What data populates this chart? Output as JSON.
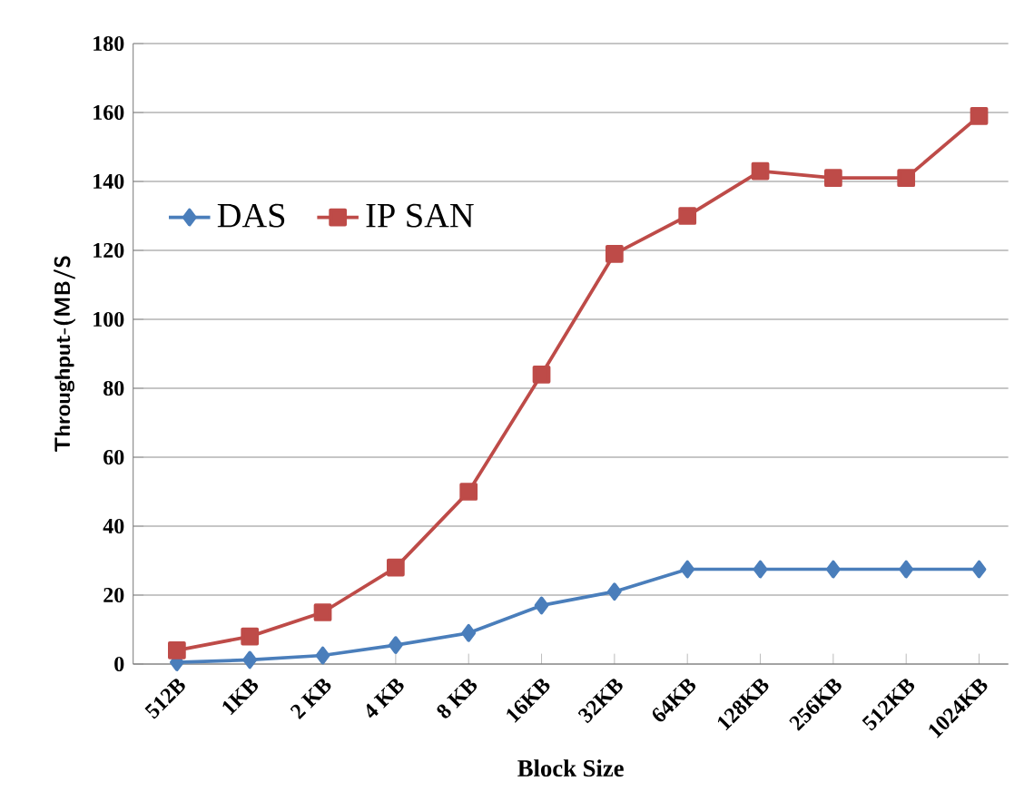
{
  "chart_data": {
    "type": "line",
    "xlabel": "Block Size",
    "ylabel": "Throughput-(MB/S",
    "categories": [
      "512B",
      "1KB",
      "2 KB",
      "4 KB",
      "8 KB",
      "16KB",
      "32KB",
      "64KB",
      "128KB",
      "256KB",
      "512KB",
      "1024KB"
    ],
    "series": [
      {
        "name": "DAS",
        "color": "#4a7ebb",
        "marker": "diamond",
        "values": [
          0.5,
          1.2,
          2.5,
          5.5,
          9,
          17,
          21,
          27.5,
          27.5,
          27.5,
          27.5,
          27.5
        ]
      },
      {
        "name": "IP SAN",
        "color": "#be4b48",
        "marker": "square",
        "values": [
          4,
          8,
          15,
          28,
          50,
          84,
          119,
          130,
          143,
          141,
          141,
          159
        ]
      }
    ],
    "ylim": [
      0,
      180
    ],
    "yticks": [
      0,
      20,
      40,
      60,
      80,
      100,
      120,
      140,
      160,
      180
    ],
    "grid": "y",
    "legend": "left",
    "line_style": "solid"
  }
}
